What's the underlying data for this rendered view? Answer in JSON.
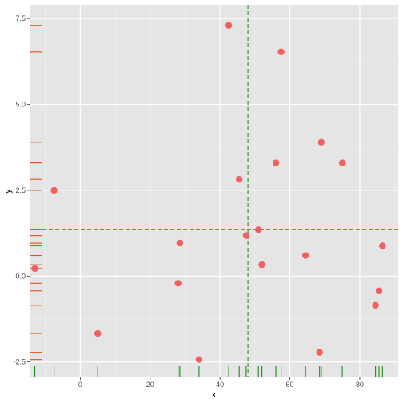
{
  "chart_data": {
    "type": "scatter",
    "xlabel": "x",
    "ylabel": "y",
    "xlim": [
      -14.5,
      91
    ],
    "ylim": [
      -2.95,
      7.9
    ],
    "x_ticks": [
      0,
      20,
      40,
      60,
      80
    ],
    "y_ticks": [
      -2.5,
      0.0,
      2.5,
      5.0,
      7.5
    ],
    "x_tick_labels": [
      "0",
      "20",
      "40",
      "60",
      "80"
    ],
    "y_tick_labels": [
      "-2.5",
      "0.0",
      "2.5",
      "5.0",
      "7.5"
    ],
    "grid": true,
    "legend": "none",
    "vline_x": 48.0,
    "hline_y": 1.35,
    "points": [
      {
        "x": -13.0,
        "y": 0.22
      },
      {
        "x": -7.5,
        "y": 2.5
      },
      {
        "x": 5.0,
        "y": -1.67
      },
      {
        "x": 28.0,
        "y": -0.21
      },
      {
        "x": 28.5,
        "y": 0.96
      },
      {
        "x": 34.0,
        "y": -2.43
      },
      {
        "x": 42.5,
        "y": 7.3
      },
      {
        "x": 45.5,
        "y": 2.82
      },
      {
        "x": 47.5,
        "y": 1.18
      },
      {
        "x": 51.0,
        "y": 1.35
      },
      {
        "x": 52.0,
        "y": 0.33
      },
      {
        "x": 56.0,
        "y": 3.3
      },
      {
        "x": 57.5,
        "y": 6.53
      },
      {
        "x": 64.5,
        "y": 0.6
      },
      {
        "x": 68.5,
        "y": -2.22
      },
      {
        "x": 69.0,
        "y": 3.9
      },
      {
        "x": 75.0,
        "y": 3.3
      },
      {
        "x": 84.5,
        "y": -0.85
      },
      {
        "x": 85.5,
        "y": -0.43
      },
      {
        "x": 86.5,
        "y": 0.88
      }
    ],
    "colors": {
      "panel": "#e5e5e5",
      "grid_major": "#ffffff",
      "grid_minor": "#f0f0f0",
      "points": "#f0585b",
      "x_rug": "#1a8f1a",
      "y_rug": "#e0521e",
      "vline": "#3a9a3a",
      "hline": "#e0521e",
      "tick_label": "#4d4d4d",
      "tick_mark": "#333333"
    }
  }
}
